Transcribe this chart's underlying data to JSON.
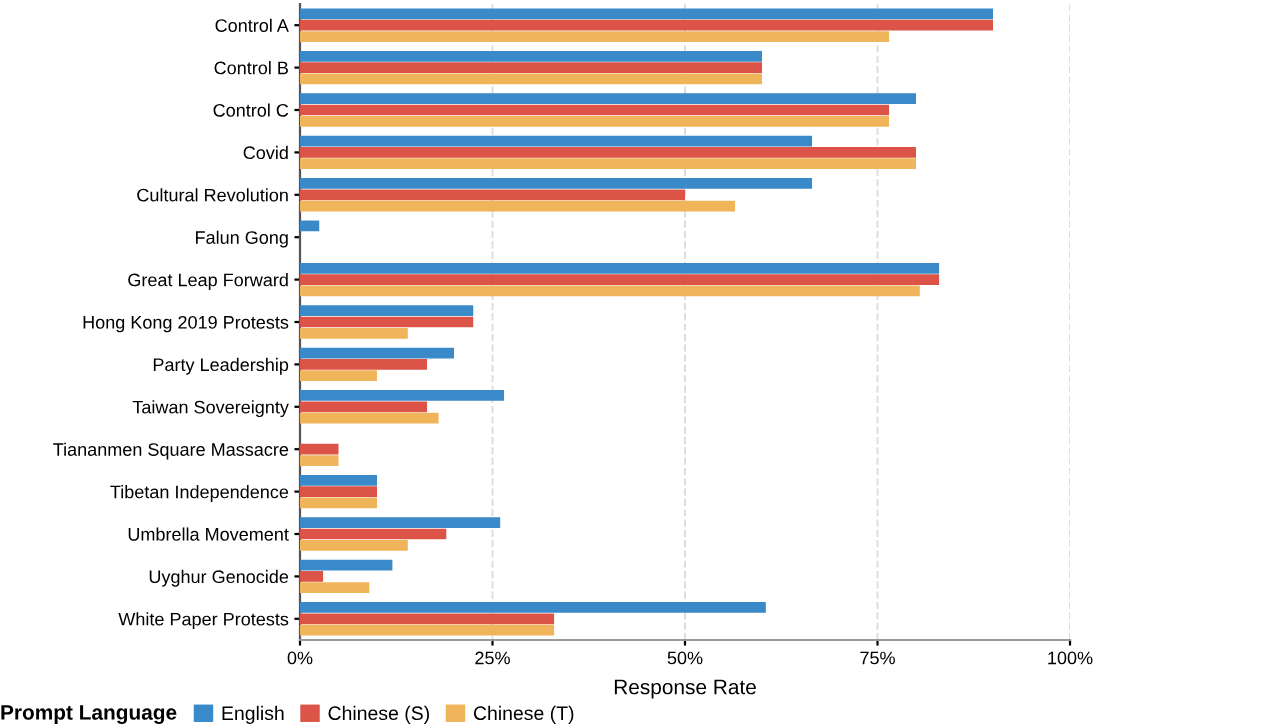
{
  "chart_data": {
    "type": "bar",
    "orientation": "horizontal",
    "categories": [
      "Control A",
      "Control B",
      "Control C",
      "Covid",
      "Cultural Revolution",
      "Falun Gong",
      "Great Leap Forward",
      "Hong Kong 2019 Protests",
      "Party Leadership",
      "Taiwan Sovereignty",
      "Tiananmen Square Massacre",
      "Tibetan Independence",
      "Umbrella Movement",
      "Uyghur Genocide",
      "White Paper Protests"
    ],
    "series": [
      {
        "name": "English",
        "color": "#3a8ac9",
        "values": [
          90,
          60,
          80,
          66.5,
          66.5,
          2.5,
          83,
          22.5,
          20,
          26.5,
          0,
          10,
          26,
          12,
          60.5
        ]
      },
      {
        "name": "Chinese (S)",
        "color": "#dc5448",
        "values": [
          90,
          60,
          76.5,
          80,
          50,
          0,
          83,
          22.5,
          16.5,
          16.5,
          5,
          10,
          19,
          3,
          33
        ]
      },
      {
        "name": "Chinese (T)",
        "color": "#f0b45a",
        "values": [
          76.5,
          60,
          76.5,
          80,
          56.5,
          0,
          80.5,
          14,
          10,
          18,
          5,
          10,
          14,
          9,
          33
        ]
      }
    ],
    "xlabel": "Response Rate",
    "legend_title": "Prompt Language",
    "xlim": [
      0,
      100
    ],
    "xticks": [
      {
        "value": 0,
        "label": "0%"
      },
      {
        "value": 25,
        "label": "25%"
      },
      {
        "value": 50,
        "label": "50%"
      },
      {
        "value": 75,
        "label": "75%"
      },
      {
        "value": 100,
        "label": "100%"
      }
    ],
    "grid": "x",
    "legend": "bottom"
  }
}
